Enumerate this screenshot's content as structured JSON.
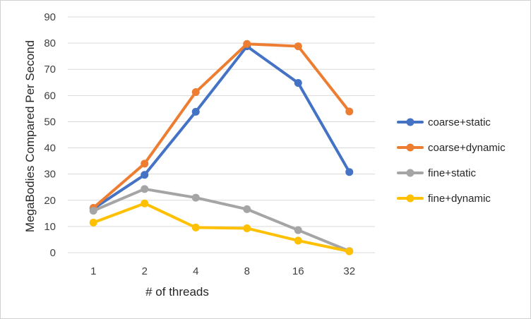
{
  "chart_data": {
    "type": "line",
    "categories": [
      "1",
      "2",
      "4",
      "8",
      "16",
      "32"
    ],
    "series": [
      {
        "name": "coarse+static",
        "color": "#4472C4",
        "values": [
          16.8,
          29.7,
          53.8,
          78.8,
          64.8,
          30.8
        ]
      },
      {
        "name": "coarse+dynamic",
        "color": "#ED7D31",
        "values": [
          17.1,
          34.0,
          61.3,
          79.7,
          78.8,
          53.9
        ]
      },
      {
        "name": "fine+static",
        "color": "#A5A5A5",
        "values": [
          16.0,
          24.3,
          21.0,
          16.6,
          8.6,
          0.6
        ]
      },
      {
        "name": "fine+dynamic",
        "color": "#FFC000",
        "values": [
          11.5,
          18.8,
          9.6,
          9.3,
          4.6,
          0.5
        ]
      }
    ],
    "xlabel": "# of threads",
    "ylabel": "MegaBodies Compared Per Second",
    "ylim": [
      0,
      90
    ],
    "yticks": [
      0,
      10,
      20,
      30,
      40,
      50,
      60,
      70,
      80,
      90
    ],
    "grid": true,
    "legend_position": "right",
    "gridline_color": "#d9d9d9"
  }
}
